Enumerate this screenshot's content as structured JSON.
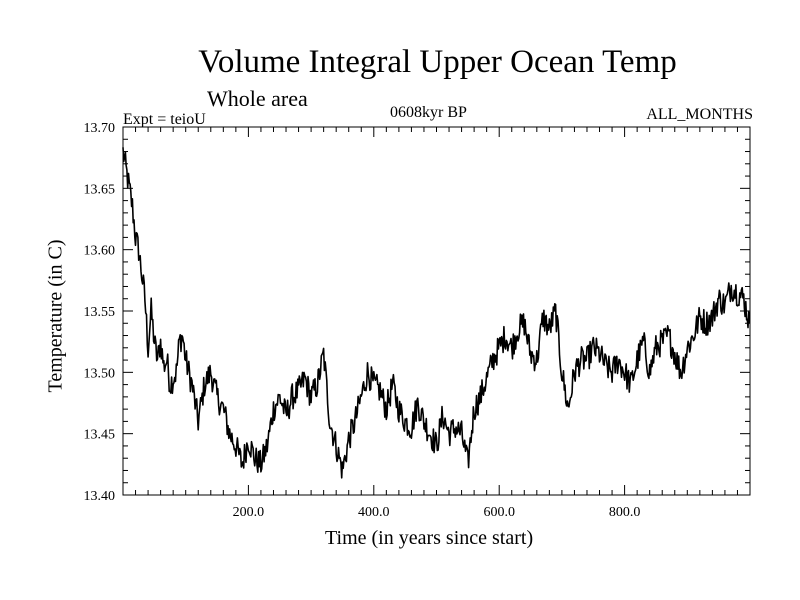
{
  "chart_data": {
    "type": "line",
    "title": "Volume Integral Upper Ocean Temp",
    "subtitle": "Whole area",
    "experiment_label": "Expt = teioU",
    "period_label": "0608kyr BP",
    "months_label": "ALL_MONTHS",
    "xlabel": "Time (in years since start)",
    "ylabel": "Temperature (in C)",
    "xlim": [
      0,
      1000
    ],
    "ylim": [
      13.4,
      13.7
    ],
    "x_tick_labels": [
      {
        "value": 200,
        "label": "200.0"
      },
      {
        "value": 400,
        "label": "400.0"
      },
      {
        "value": 600,
        "label": "600.0"
      },
      {
        "value": 800,
        "label": "800.0"
      }
    ],
    "y_tick_labels": [
      {
        "value": 13.4,
        "label": "13.40"
      },
      {
        "value": 13.45,
        "label": "13.45"
      },
      {
        "value": 13.5,
        "label": "13.50"
      },
      {
        "value": 13.55,
        "label": "13.55"
      },
      {
        "value": 13.6,
        "label": "13.60"
      },
      {
        "value": 13.65,
        "label": "13.65"
      },
      {
        "value": 13.7,
        "label": "13.70"
      }
    ],
    "x_minor_step": 20,
    "y_minor_step": 0.01,
    "series": [
      {
        "name": "Volume integral upper ocean temperature",
        "x": [
          0,
          5,
          10,
          15,
          20,
          25,
          30,
          35,
          40,
          45,
          50,
          55,
          60,
          65,
          70,
          75,
          80,
          85,
          90,
          95,
          100,
          110,
          120,
          130,
          140,
          150,
          160,
          170,
          180,
          190,
          200,
          210,
          220,
          230,
          240,
          250,
          260,
          270,
          280,
          290,
          300,
          310,
          320,
          330,
          340,
          350,
          360,
          370,
          380,
          390,
          400,
          410,
          420,
          430,
          440,
          450,
          460,
          470,
          480,
          490,
          500,
          510,
          520,
          530,
          540,
          550,
          560,
          570,
          580,
          590,
          600,
          610,
          620,
          630,
          640,
          650,
          660,
          670,
          680,
          690,
          700,
          710,
          720,
          730,
          740,
          750,
          760,
          770,
          780,
          790,
          800,
          810,
          820,
          830,
          840,
          850,
          860,
          870,
          880,
          890,
          900,
          910,
          920,
          930,
          940,
          950,
          960,
          970,
          980,
          990,
          999
        ],
        "values": [
          13.68,
          13.665,
          13.65,
          13.635,
          13.61,
          13.6,
          13.58,
          13.56,
          13.52,
          13.55,
          13.525,
          13.51,
          13.525,
          13.505,
          13.51,
          13.49,
          13.495,
          13.5,
          13.525,
          13.53,
          13.51,
          13.49,
          13.46,
          13.49,
          13.5,
          13.48,
          13.47,
          13.45,
          13.44,
          13.425,
          13.445,
          13.43,
          13.425,
          13.44,
          13.47,
          13.48,
          13.465,
          13.48,
          13.485,
          13.495,
          13.48,
          13.49,
          13.515,
          13.46,
          13.44,
          13.42,
          13.445,
          13.46,
          13.48,
          13.5,
          13.49,
          13.485,
          13.47,
          13.49,
          13.47,
          13.46,
          13.455,
          13.475,
          13.46,
          13.45,
          13.44,
          13.465,
          13.45,
          13.455,
          13.45,
          13.425,
          13.47,
          13.48,
          13.495,
          13.51,
          13.52,
          13.53,
          13.52,
          13.535,
          13.54,
          13.515,
          13.51,
          13.545,
          13.535,
          13.55,
          13.5,
          13.47,
          13.5,
          13.51,
          13.51,
          13.52,
          13.515,
          13.505,
          13.5,
          13.51,
          13.5,
          13.49,
          13.51,
          13.525,
          13.5,
          13.52,
          13.525,
          13.53,
          13.515,
          13.5,
          13.52,
          13.53,
          13.545,
          13.54,
          13.545,
          13.56,
          13.555,
          13.57,
          13.565,
          13.56,
          13.54
        ]
      }
    ]
  }
}
